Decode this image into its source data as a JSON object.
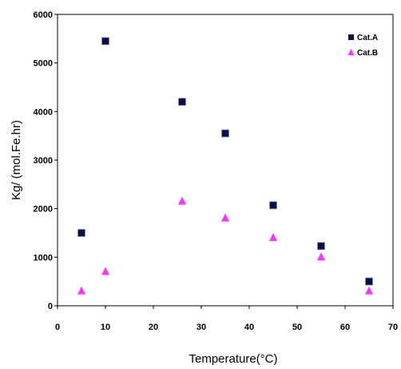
{
  "chart_data": {
    "type": "scatter",
    "title": "",
    "xlabel": "Temperature(°C)",
    "ylabel": "Kg/ (mol.Fe.hr)",
    "xlim": [
      0,
      70
    ],
    "ylim": [
      0,
      6000
    ],
    "x_ticks": [
      0,
      10,
      20,
      30,
      40,
      50,
      60,
      70
    ],
    "y_ticks": [
      0,
      1000,
      2000,
      3000,
      4000,
      5000,
      6000
    ],
    "grid": false,
    "legend_position": "top-right",
    "series": [
      {
        "name": "Cat.A",
        "marker": "square",
        "color": "#0a0f4a",
        "points": [
          {
            "x": 5,
            "y": 1500
          },
          {
            "x": 10,
            "y": 5450
          },
          {
            "x": 26,
            "y": 4200
          },
          {
            "x": 35,
            "y": 3550
          },
          {
            "x": 45,
            "y": 2070
          },
          {
            "x": 55,
            "y": 1230
          },
          {
            "x": 65,
            "y": 500
          }
        ]
      },
      {
        "name": "Cat.B",
        "marker": "triangle",
        "color": "#ff33ff",
        "points": [
          {
            "x": 5,
            "y": 300
          },
          {
            "x": 10,
            "y": 700
          },
          {
            "x": 26,
            "y": 2150
          },
          {
            "x": 35,
            "y": 1800
          },
          {
            "x": 45,
            "y": 1400
          },
          {
            "x": 55,
            "y": 1000
          },
          {
            "x": 65,
            "y": 300
          }
        ]
      }
    ]
  }
}
